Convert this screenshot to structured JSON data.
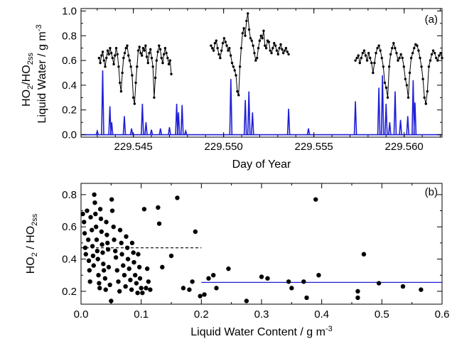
{
  "chart_data": [
    {
      "type": "line",
      "panel_label": "(a)",
      "xlabel": "Day of Year",
      "ylabel_parts": [
        "HO",
        "2",
        "/HO",
        "2ss",
        "Liquid Water / g m",
        "-3"
      ],
      "xlim": [
        229.5421,
        229.5621
      ],
      "ylim": [
        -0.02,
        1.02
      ],
      "xticks": [
        229.545,
        229.55,
        229.555,
        229.56
      ],
      "xtick_labels": [
        "229.545",
        "229.550",
        "229.555",
        "229.560"
      ],
      "yticks": [
        0.0,
        0.2,
        0.4,
        0.6,
        0.8,
        1.0
      ],
      "ytick_labels": [
        "0.0",
        "0.2",
        "0.4",
        "0.6",
        "0.8",
        "1.0"
      ],
      "grid": false,
      "series": [
        {
          "role": "HO2/HO2ss ratio",
          "color": "#000000",
          "marker": "dot",
          "segments": [
            {
              "x_start": 229.5431,
              "x_end": 229.5471,
              "y": [
                0.62,
                0.58,
                0.64,
                0.67,
                0.6,
                0.55,
                0.62,
                0.68,
                0.65,
                0.7,
                0.66,
                0.62,
                0.57,
                0.64,
                0.7,
                0.65,
                0.55,
                0.42,
                0.35,
                0.5,
                0.62,
                0.66,
                0.7,
                0.72,
                0.64,
                0.6,
                0.55,
                0.48,
                0.3,
                0.25,
                0.42,
                0.55,
                0.68,
                0.71,
                0.66,
                0.64,
                0.7,
                0.68,
                0.72,
                0.63,
                0.58,
                0.66,
                0.69,
                0.62,
                0.55,
                0.3,
                0.46,
                0.6,
                0.67,
                0.72,
                0.69,
                0.62,
                0.58,
                0.65,
                0.7,
                0.66,
                0.62,
                0.57,
                0.6,
                0.49
              ]
            },
            {
              "x_start": 229.5493,
              "x_end": 229.5536,
              "y": [
                0.72,
                0.7,
                0.68,
                0.74,
                0.76,
                0.7,
                0.65,
                0.62,
                0.68,
                0.74,
                0.78,
                0.75,
                0.72,
                0.68,
                0.7,
                0.64,
                0.58,
                0.55,
                0.52,
                0.48,
                0.35,
                0.32,
                0.55,
                0.7,
                0.82,
                0.86,
                0.8,
                0.92,
                0.98,
                0.85,
                0.78,
                0.76,
                0.72,
                0.66,
                0.6,
                0.62,
                0.7,
                0.76,
                0.8,
                0.78,
                0.84,
                0.72,
                0.7,
                0.76,
                0.75,
                0.68,
                0.66,
                0.7,
                0.74,
                0.72,
                0.68,
                0.65,
                0.7,
                0.73,
                0.69,
                0.66,
                0.68,
                0.7,
                0.67,
                0.65
              ]
            },
            {
              "x_start": 229.5573,
              "x_end": 229.5621,
              "y": [
                0.6,
                0.62,
                0.64,
                0.58,
                0.62,
                0.66,
                0.68,
                0.64,
                0.6,
                0.66,
                0.62,
                0.58,
                0.5,
                0.58,
                0.66,
                0.7,
                0.72,
                0.68,
                0.62,
                0.55,
                0.42,
                0.38,
                0.3,
                0.55,
                0.65,
                0.7,
                0.74,
                0.7,
                0.66,
                0.6,
                0.62,
                0.65,
                0.62,
                0.55,
                0.45,
                0.4,
                0.3,
                0.5,
                0.62,
                0.66,
                0.7,
                0.73,
                0.72,
                0.68,
                0.62,
                0.55,
                0.45,
                0.3,
                0.25,
                0.35,
                0.55,
                0.6,
                0.65,
                0.68,
                0.66,
                0.62,
                0.6,
                0.64,
                0.66,
                0.62
              ]
            }
          ]
        },
        {
          "role": "Liquid water",
          "color": "#1f1fd6",
          "peaks": [
            {
              "x": 229.543,
              "y": 0.03
            },
            {
              "x": 229.5433,
              "y": 0.52
            },
            {
              "x": 229.5437,
              "y": 0.23
            },
            {
              "x": 229.5438,
              "y": 0.1
            },
            {
              "x": 229.5445,
              "y": 0.15
            },
            {
              "x": 229.5449,
              "y": 0.05
            },
            {
              "x": 229.5455,
              "y": 0.25
            },
            {
              "x": 229.5457,
              "y": 0.1
            },
            {
              "x": 229.546,
              "y": 0.04
            },
            {
              "x": 229.5465,
              "y": 0.05
            },
            {
              "x": 229.547,
              "y": 0.06
            },
            {
              "x": 229.5474,
              "y": 0.25
            },
            {
              "x": 229.5475,
              "y": 0.18
            },
            {
              "x": 229.5477,
              "y": 0.24
            },
            {
              "x": 229.5479,
              "y": 0.03
            },
            {
              "x": 229.5504,
              "y": 0.45
            },
            {
              "x": 229.5512,
              "y": 0.28
            },
            {
              "x": 229.5514,
              "y": 0.35
            },
            {
              "x": 229.5516,
              "y": 0.18
            },
            {
              "x": 229.5536,
              "y": 0.21
            },
            {
              "x": 229.5547,
              "y": 0.05
            },
            {
              "x": 229.5573,
              "y": 0.27
            },
            {
              "x": 229.5586,
              "y": 0.38
            },
            {
              "x": 229.5588,
              "y": 0.48
            },
            {
              "x": 229.559,
              "y": 0.25
            },
            {
              "x": 229.5592,
              "y": 0.1
            },
            {
              "x": 229.5595,
              "y": 0.35
            },
            {
              "x": 229.5598,
              "y": 0.12
            },
            {
              "x": 229.5602,
              "y": 0.15
            },
            {
              "x": 229.5605,
              "y": 0.44
            },
            {
              "x": 229.5606,
              "y": 0.26
            }
          ]
        }
      ]
    },
    {
      "type": "scatter",
      "panel_label": "(b)",
      "xlabel_parts": [
        "Liquid Water Content / g m",
        "-3"
      ],
      "ylabel_parts": [
        "HO",
        "2",
        " / HO",
        "2ss"
      ],
      "xlim": [
        0.0,
        0.6
      ],
      "ylim": [
        0.12,
        0.87
      ],
      "xticks": [
        0.0,
        0.1,
        0.2,
        0.3,
        0.4,
        0.5,
        0.6
      ],
      "xtick_labels": [
        "0.0",
        "0.1",
        "0.2",
        "0.3",
        "0.4",
        "0.5",
        "0.6"
      ],
      "yticks": [
        0.2,
        0.4,
        0.6,
        0.8
      ],
      "ytick_labels": [
        "0.2",
        "0.4",
        "0.6",
        "0.8"
      ],
      "grid": false,
      "points": [
        [
          0.003,
          0.68
        ],
        [
          0.005,
          0.63
        ],
        [
          0.006,
          0.56
        ],
        [
          0.007,
          0.47
        ],
        [
          0.008,
          0.43
        ],
        [
          0.01,
          0.7
        ],
        [
          0.012,
          0.52
        ],
        [
          0.013,
          0.39
        ],
        [
          0.014,
          0.33
        ],
        [
          0.015,
          0.26
        ],
        [
          0.016,
          0.66
        ],
        [
          0.018,
          0.58
        ],
        [
          0.019,
          0.48
        ],
        [
          0.02,
          0.42
        ],
        [
          0.021,
          0.36
        ],
        [
          0.022,
          0.8
        ],
        [
          0.023,
          0.75
        ],
        [
          0.024,
          0.68
        ],
        [
          0.025,
          0.6
        ],
        [
          0.026,
          0.52
        ],
        [
          0.027,
          0.45
        ],
        [
          0.028,
          0.4
        ],
        [
          0.029,
          0.3
        ],
        [
          0.03,
          0.25
        ],
        [
          0.031,
          0.22
        ],
        [
          0.032,
          0.71
        ],
        [
          0.033,
          0.65
        ],
        [
          0.034,
          0.57
        ],
        [
          0.035,
          0.49
        ],
        [
          0.036,
          0.44
        ],
        [
          0.037,
          0.37
        ],
        [
          0.038,
          0.33
        ],
        [
          0.04,
          0.28
        ],
        [
          0.041,
          0.21
        ],
        [
          0.042,
          0.63
        ],
        [
          0.043,
          0.55
        ],
        [
          0.044,
          0.5
        ],
        [
          0.045,
          0.46
        ],
        [
          0.046,
          0.35
        ],
        [
          0.048,
          0.24
        ],
        [
          0.05,
          0.14
        ],
        [
          0.051,
          0.77
        ],
        [
          0.052,
          0.7
        ],
        [
          0.054,
          0.6
        ],
        [
          0.055,
          0.52
        ],
        [
          0.057,
          0.45
        ],
        [
          0.058,
          0.41
        ],
        [
          0.06,
          0.33
        ],
        [
          0.062,
          0.26
        ],
        [
          0.064,
          0.2
        ],
        [
          0.065,
          0.58
        ],
        [
          0.067,
          0.5
        ],
        [
          0.068,
          0.43
        ],
        [
          0.07,
          0.36
        ],
        [
          0.072,
          0.3
        ],
        [
          0.074,
          0.23
        ],
        [
          0.075,
          0.54
        ],
        [
          0.077,
          0.47
        ],
        [
          0.078,
          0.4
        ],
        [
          0.08,
          0.34
        ],
        [
          0.082,
          0.27
        ],
        [
          0.084,
          0.21
        ],
        [
          0.085,
          0.5
        ],
        [
          0.087,
          0.44
        ],
        [
          0.088,
          0.38
        ],
        [
          0.09,
          0.3
        ],
        [
          0.092,
          0.25
        ],
        [
          0.094,
          0.19
        ],
        [
          0.095,
          0.43
        ],
        [
          0.097,
          0.35
        ],
        [
          0.098,
          0.28
        ],
        [
          0.1,
          0.22
        ],
        [
          0.102,
          0.19
        ],
        [
          0.105,
          0.71
        ],
        [
          0.108,
          0.22
        ],
        [
          0.11,
          0.34
        ],
        [
          0.112,
          0.26
        ],
        [
          0.115,
          0.21
        ],
        [
          0.128,
          0.72
        ],
        [
          0.13,
          0.62
        ],
        [
          0.135,
          0.35
        ],
        [
          0.15,
          0.42
        ],
        [
          0.16,
          0.78
        ],
        [
          0.17,
          0.22
        ],
        [
          0.18,
          0.21
        ],
        [
          0.185,
          0.26
        ],
        [
          0.19,
          0.57
        ],
        [
          0.198,
          0.17
        ],
        [
          0.205,
          0.18
        ],
        [
          0.212,
          0.28
        ],
        [
          0.22,
          0.3
        ],
        [
          0.225,
          0.22
        ],
        [
          0.245,
          0.34
        ],
        [
          0.275,
          0.14
        ],
        [
          0.3,
          0.29
        ],
        [
          0.31,
          0.28
        ],
        [
          0.345,
          0.26
        ],
        [
          0.35,
          0.22
        ],
        [
          0.37,
          0.26
        ],
        [
          0.375,
          0.16
        ],
        [
          0.39,
          0.77
        ],
        [
          0.395,
          0.3
        ],
        [
          0.46,
          0.2
        ],
        [
          0.46,
          0.16
        ],
        [
          0.47,
          0.43
        ],
        [
          0.495,
          0.25
        ],
        [
          0.535,
          0.23
        ],
        [
          0.565,
          0.21
        ]
      ],
      "reference_lines": [
        {
          "x": [
            0.0,
            0.2
          ],
          "y": 0.47,
          "style": "dashed",
          "color": "#000000"
        },
        {
          "x": [
            0.2,
            0.6
          ],
          "y": 0.255,
          "style": "solid",
          "color": "#1f1fd6"
        }
      ]
    }
  ]
}
